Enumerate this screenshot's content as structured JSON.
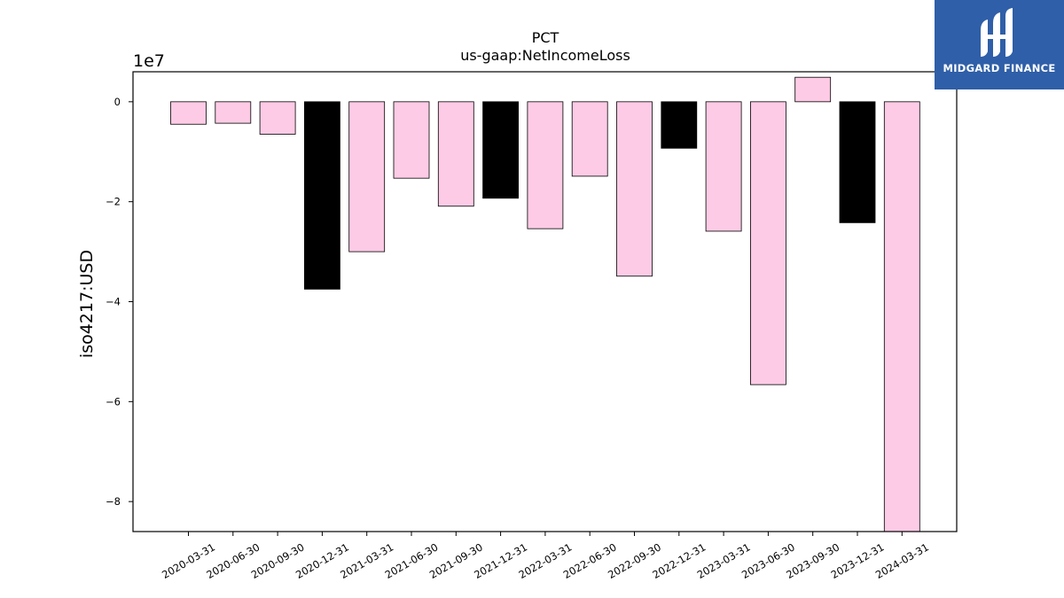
{
  "chart_data": {
    "type": "bar",
    "title": "PCT",
    "subtitle": "us-gaap:NetIncomeLoss",
    "ylabel": "iso4217:USD",
    "y_offset_label": "1e7",
    "ylim": [
      -8.6,
      0.6
    ],
    "yticks": [
      0,
      -2,
      -4,
      -6,
      -8
    ],
    "ytick_labels": [
      "0",
      "−2",
      "−4",
      "−6",
      "−8"
    ],
    "categories": [
      "2020-03-31",
      "2020-06-30",
      "2020-09-30",
      "2020-12-31",
      "2021-03-31",
      "2021-06-30",
      "2021-09-30",
      "2021-12-31",
      "2022-03-31",
      "2022-06-30",
      "2022-09-30",
      "2022-12-31",
      "2023-03-31",
      "2023-06-30",
      "2023-09-30",
      "2023-12-31",
      "2024-03-31"
    ],
    "values": [
      -0.45,
      -0.43,
      -0.65,
      -3.75,
      -3.0,
      -1.53,
      -2.09,
      -1.93,
      -2.54,
      -1.49,
      -3.49,
      -0.93,
      -2.59,
      -5.66,
      0.49,
      -2.42,
      -8.6
    ],
    "colors": [
      "#fdcbe5",
      "#fdcbe5",
      "#fdcbe5",
      "#000000",
      "#fdcbe5",
      "#fdcbe5",
      "#fdcbe5",
      "#000000",
      "#fdcbe5",
      "#fdcbe5",
      "#fdcbe5",
      "#000000",
      "#fdcbe5",
      "#fdcbe5",
      "#fdcbe5",
      "#000000",
      "#fdcbe5"
    ],
    "grid": false,
    "legend": "none"
  },
  "logo": {
    "name": "MIDGARD FINANCE",
    "background": "#2f5fa8"
  }
}
